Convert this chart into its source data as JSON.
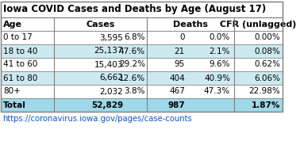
{
  "title": "Iowa COVID Cases and Deaths by Age (August 17)",
  "rows": [
    {
      "age": "0 to 17",
      "cases": "3,595",
      "cases_pct": "6.8%",
      "deaths": "0",
      "deaths_pct": "0.0%",
      "cfr": "0.00%",
      "bg": "#ffffff"
    },
    {
      "age": "18 to 40",
      "cases": "25,137",
      "cases_pct": "47.6%",
      "deaths": "21",
      "deaths_pct": "2.1%",
      "cfr": "0.08%",
      "bg": "#cce9f0"
    },
    {
      "age": "41 to 60",
      "cases": "15,403",
      "cases_pct": "29.2%",
      "deaths": "95",
      "deaths_pct": "9.6%",
      "cfr": "0.62%",
      "bg": "#ffffff"
    },
    {
      "age": "61 to 80",
      "cases": "6,662",
      "cases_pct": "12.6%",
      "deaths": "404",
      "deaths_pct": "40.9%",
      "cfr": "6.06%",
      "bg": "#cce9f0"
    },
    {
      "age": "80+",
      "cases": "2,032",
      "cases_pct": "3.8%",
      "deaths": "467",
      "deaths_pct": "47.3%",
      "cfr": "22.98%",
      "bg": "#ffffff"
    },
    {
      "age": "Total",
      "cases": "52,829",
      "cases_pct": "",
      "deaths": "987",
      "deaths_pct": "",
      "cfr": "1.87%",
      "bg": "#9fd8e8"
    }
  ],
  "link": "https://coronavirus.iowa.gov/pages/case-counts",
  "link_color": "#1155cc",
  "text_color": "#000000",
  "title_fontsize": 8.5,
  "cell_fontsize": 7.5,
  "header_fontsize": 8.0,
  "border_color": "#7f7f7f",
  "col_divider_color": "#7f7f7f",
  "title_bg": "#ffffff",
  "header_bg": "#ffffff"
}
